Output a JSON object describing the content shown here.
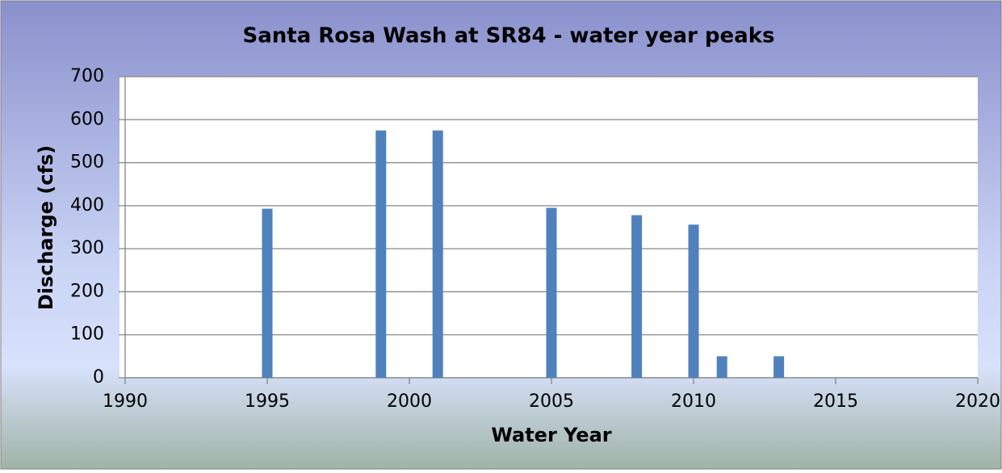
{
  "chart_data": {
    "type": "bar",
    "title": "Santa Rosa Wash at SR84 - water year peaks",
    "x_label": "Water Year",
    "y_label": "Discharge (cfs)",
    "x": [
      1995,
      1999,
      2001,
      2005,
      2008,
      2010,
      2011,
      2013
    ],
    "values": [
      393,
      575,
      575,
      395,
      378,
      356,
      50,
      50
    ],
    "color": "#4f81bd",
    "xlim": [
      1990,
      2020
    ],
    "xticks": [
      1990,
      1995,
      2000,
      2005,
      2010,
      2015,
      2020
    ],
    "ylim": [
      0,
      700
    ],
    "yticks": [
      0,
      100,
      200,
      300,
      400,
      500,
      600,
      700
    ],
    "grid": true
  }
}
